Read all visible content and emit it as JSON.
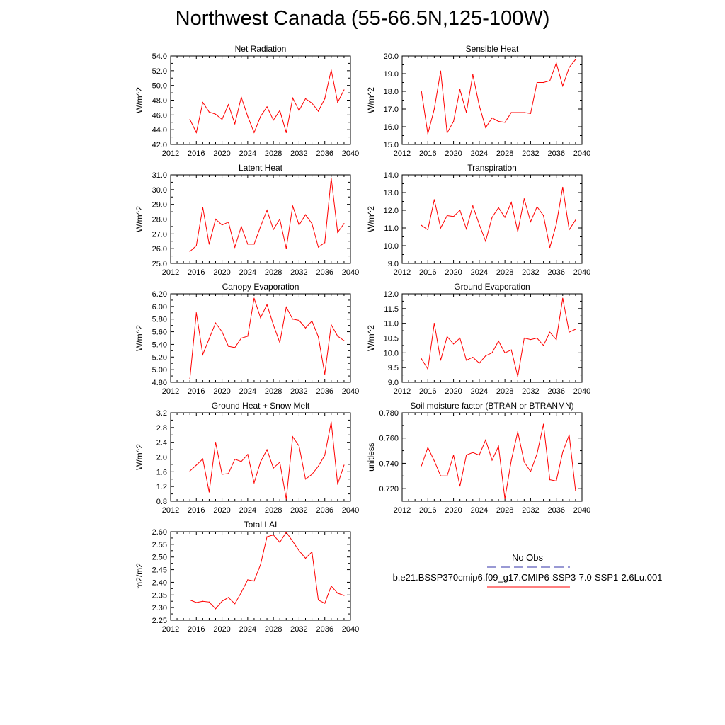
{
  "title": "Northwest Canada (55-66.5N,125-100W)",
  "colors": {
    "series": "#ff0000",
    "obs": "#3333aa",
    "axis": "#000000",
    "background": "#ffffff"
  },
  "legend": {
    "obs_label": "No Obs",
    "run_label": "b.e21.BSSP370cmip6.f09_g17.CMIP6-SSP3-7.0-SSP1-2.6Lu.001"
  },
  "chart_data": [
    {
      "type": "line",
      "title": "Net Radiation",
      "ylabel": "W/m^2",
      "xlim": [
        2012,
        2040
      ],
      "xticks": [
        "2012",
        "2016",
        "2020",
        "2024",
        "2028",
        "2032",
        "2036",
        "2040"
      ],
      "ylim": [
        42.0,
        54.0
      ],
      "yticks": [
        "42.0",
        "44.0",
        "46.0",
        "48.0",
        "50.0",
        "52.0",
        "54.0"
      ],
      "x": [
        2015,
        2016,
        2017,
        2018,
        2019,
        2020,
        2021,
        2022,
        2023,
        2024,
        2025,
        2026,
        2027,
        2028,
        2029,
        2030,
        2031,
        2032,
        2033,
        2034,
        2035,
        2036,
        2037,
        2038,
        2039
      ],
      "values": [
        45.4,
        43.6,
        47.7,
        46.4,
        46.1,
        45.4,
        47.4,
        44.8,
        48.4,
        45.8,
        43.6,
        45.8,
        47.1,
        45.3,
        46.6,
        43.6,
        48.3,
        46.6,
        48.2,
        47.6,
        46.5,
        48.2,
        52.1,
        47.7,
        49.4
      ]
    },
    {
      "type": "line",
      "title": "Sensible Heat",
      "ylabel": "W/m^2",
      "xlim": [
        2012,
        2040
      ],
      "xticks": [
        "2012",
        "2016",
        "2020",
        "2024",
        "2028",
        "2032",
        "2036",
        "2040"
      ],
      "ylim": [
        15.0,
        20.0
      ],
      "yticks": [
        "15.0",
        "16.0",
        "17.0",
        "18.0",
        "19.0",
        "20.0"
      ],
      "x": [
        2015,
        2016,
        2017,
        2018,
        2019,
        2020,
        2021,
        2022,
        2023,
        2024,
        2025,
        2026,
        2027,
        2028,
        2029,
        2030,
        2031,
        2032,
        2033,
        2034,
        2035,
        2036,
        2037,
        2038,
        2039
      ],
      "values": [
        18.0,
        15.6,
        17.0,
        19.15,
        15.65,
        16.3,
        18.1,
        16.8,
        18.95,
        17.2,
        15.95,
        16.5,
        16.3,
        16.25,
        16.8,
        16.8,
        16.8,
        16.75,
        18.5,
        18.5,
        18.6,
        19.6,
        18.3,
        19.35,
        19.8
      ]
    },
    {
      "type": "line",
      "title": "Latent Heat",
      "ylabel": "W/m^2",
      "xlim": [
        2012,
        2040
      ],
      "xticks": [
        "2012",
        "2016",
        "2020",
        "2024",
        "2028",
        "2032",
        "2036",
        "2040"
      ],
      "ylim": [
        25.0,
        31.0
      ],
      "yticks": [
        "25.0",
        "26.0",
        "27.0",
        "28.0",
        "29.0",
        "30.0",
        "31.0"
      ],
      "x": [
        2015,
        2016,
        2017,
        2018,
        2019,
        2020,
        2021,
        2022,
        2023,
        2024,
        2025,
        2026,
        2027,
        2028,
        2029,
        2030,
        2031,
        2032,
        2033,
        2034,
        2035,
        2036,
        2037,
        2038,
        2039
      ],
      "values": [
        25.8,
        26.2,
        28.8,
        26.3,
        28.0,
        27.6,
        27.8,
        26.1,
        27.5,
        26.3,
        26.3,
        27.5,
        28.6,
        27.3,
        28.0,
        26.0,
        28.9,
        27.6,
        28.3,
        27.7,
        26.1,
        26.4,
        30.8,
        27.1,
        27.7
      ]
    },
    {
      "type": "line",
      "title": "Transpiration",
      "ylabel": "W/m^2",
      "xlim": [
        2012,
        2040
      ],
      "xticks": [
        "2012",
        "2016",
        "2020",
        "2024",
        "2028",
        "2032",
        "2036",
        "2040"
      ],
      "ylim": [
        9.0,
        14.0
      ],
      "yticks": [
        "9.0",
        "10.0",
        "11.0",
        "12.0",
        "13.0",
        "14.0"
      ],
      "x": [
        2015,
        2016,
        2017,
        2018,
        2019,
        2020,
        2021,
        2022,
        2023,
        2024,
        2025,
        2026,
        2027,
        2028,
        2029,
        2030,
        2031,
        2032,
        2033,
        2034,
        2035,
        2036,
        2037,
        2038,
        2039
      ],
      "values": [
        11.15,
        10.9,
        12.6,
        11.0,
        11.7,
        11.65,
        12.0,
        10.95,
        12.25,
        11.2,
        10.25,
        11.6,
        12.15,
        11.6,
        12.45,
        10.8,
        12.65,
        11.35,
        12.2,
        11.7,
        9.9,
        11.2,
        13.3,
        10.9,
        11.45
      ]
    },
    {
      "type": "line",
      "title": "Canopy Evaporation",
      "ylabel": "W/m^2",
      "xlim": [
        2012,
        2040
      ],
      "xticks": [
        "2012",
        "2016",
        "2020",
        "2024",
        "2028",
        "2032",
        "2036",
        "2040"
      ],
      "ylim": [
        4.8,
        6.2
      ],
      "yticks": [
        "4.80",
        "5.00",
        "5.20",
        "5.40",
        "5.60",
        "5.80",
        "6.00",
        "6.20"
      ],
      "x": [
        2015,
        2016,
        2017,
        2018,
        2019,
        2020,
        2021,
        2022,
        2023,
        2024,
        2025,
        2026,
        2027,
        2028,
        2029,
        2030,
        2031,
        2032,
        2033,
        2034,
        2035,
        2036,
        2037,
        2038,
        2039
      ],
      "values": [
        4.86,
        5.9,
        5.24,
        5.49,
        5.74,
        5.6,
        5.37,
        5.35,
        5.5,
        5.53,
        6.13,
        5.82,
        6.03,
        5.71,
        5.43,
        5.99,
        5.8,
        5.78,
        5.66,
        5.77,
        5.52,
        4.93,
        5.71,
        5.53,
        5.46
      ]
    },
    {
      "type": "line",
      "title": "Ground Evaporation",
      "ylabel": "W/m^2",
      "xlim": [
        2012,
        2040
      ],
      "xticks": [
        "2012",
        "2016",
        "2020",
        "2024",
        "2028",
        "2032",
        "2036",
        "2040"
      ],
      "ylim": [
        9.0,
        12.0
      ],
      "yticks": [
        "9.0",
        "9.5",
        "10.0",
        "10.5",
        "11.0",
        "11.5",
        "12.0"
      ],
      "x": [
        2015,
        2016,
        2017,
        2018,
        2019,
        2020,
        2021,
        2022,
        2023,
        2024,
        2025,
        2026,
        2027,
        2028,
        2029,
        2030,
        2031,
        2032,
        2033,
        2034,
        2035,
        2036,
        2037,
        2038,
        2039
      ],
      "values": [
        9.8,
        9.45,
        11.0,
        9.75,
        10.55,
        10.3,
        10.5,
        9.75,
        9.85,
        9.65,
        9.9,
        10.0,
        10.4,
        10.0,
        10.1,
        9.2,
        10.5,
        10.45,
        10.5,
        10.25,
        10.7,
        10.45,
        11.85,
        10.7,
        10.8
      ]
    },
    {
      "type": "line",
      "title": "Ground Heat + Snow Melt",
      "ylabel": "W/m^2",
      "xlim": [
        2012,
        2040
      ],
      "xticks": [
        "2012",
        "2016",
        "2020",
        "2024",
        "2028",
        "2032",
        "2036",
        "2040"
      ],
      "ylim": [
        0.8,
        3.2
      ],
      "yticks": [
        "0.8",
        "1.2",
        "1.6",
        "2.0",
        "2.4",
        "2.8",
        "3.2"
      ],
      "x": [
        2015,
        2016,
        2017,
        2018,
        2019,
        2020,
        2021,
        2022,
        2023,
        2024,
        2025,
        2026,
        2027,
        2028,
        2029,
        2030,
        2031,
        2032,
        2033,
        2034,
        2035,
        2036,
        2037,
        2038,
        2039
      ],
      "values": [
        1.62,
        1.78,
        1.95,
        1.05,
        2.4,
        1.53,
        1.55,
        1.94,
        1.88,
        2.07,
        1.3,
        1.87,
        2.2,
        1.7,
        1.86,
        0.86,
        2.55,
        2.3,
        1.4,
        1.53,
        1.75,
        2.05,
        2.95,
        1.26,
        1.78
      ]
    },
    {
      "type": "line",
      "title": "Soil moisture factor (BTRAN or BTRANMN)",
      "ylabel": "unitless",
      "xlim": [
        2012,
        2040
      ],
      "xticks": [
        "2012",
        "2016",
        "2020",
        "2024",
        "2028",
        "2032",
        "2036",
        "2040"
      ],
      "ylim": [
        0.71,
        0.78
      ],
      "yticks": [
        "0.720",
        "0.740",
        "0.760",
        "0.780"
      ],
      "x": [
        2015,
        2016,
        2017,
        2018,
        2019,
        2020,
        2021,
        2022,
        2023,
        2024,
        2025,
        2026,
        2027,
        2028,
        2029,
        2030,
        2031,
        2032,
        2033,
        2034,
        2035,
        2036,
        2037,
        2038,
        2039
      ],
      "values": [
        0.738,
        0.7525,
        0.742,
        0.73,
        0.73,
        0.7465,
        0.722,
        0.7465,
        0.7485,
        0.7465,
        0.7585,
        0.7425,
        0.7535,
        0.712,
        0.7425,
        0.765,
        0.741,
        0.7335,
        0.7475,
        0.771,
        0.727,
        0.726,
        0.749,
        0.7625,
        0.7185
      ]
    },
    {
      "type": "line",
      "title": "Total LAI",
      "ylabel": "m2/m2",
      "xlim": [
        2012,
        2040
      ],
      "xticks": [
        "2012",
        "2016",
        "2020",
        "2024",
        "2028",
        "2032",
        "2036",
        "2040"
      ],
      "ylim": [
        2.25,
        2.6
      ],
      "yticks": [
        "2.25",
        "2.30",
        "2.35",
        "2.40",
        "2.45",
        "2.50",
        "2.55",
        "2.60"
      ],
      "x": [
        2015,
        2016,
        2017,
        2018,
        2019,
        2020,
        2021,
        2022,
        2023,
        2024,
        2025,
        2026,
        2027,
        2028,
        2029,
        2030,
        2031,
        2032,
        2033,
        2034,
        2035,
        2036,
        2037,
        2038,
        2039
      ],
      "values": [
        2.33,
        2.32,
        2.325,
        2.322,
        2.295,
        2.325,
        2.34,
        2.315,
        2.36,
        2.41,
        2.405,
        2.47,
        2.58,
        2.587,
        2.558,
        2.598,
        2.562,
        2.525,
        2.495,
        2.52,
        2.33,
        2.317,
        2.385,
        2.357,
        2.348
      ]
    }
  ]
}
